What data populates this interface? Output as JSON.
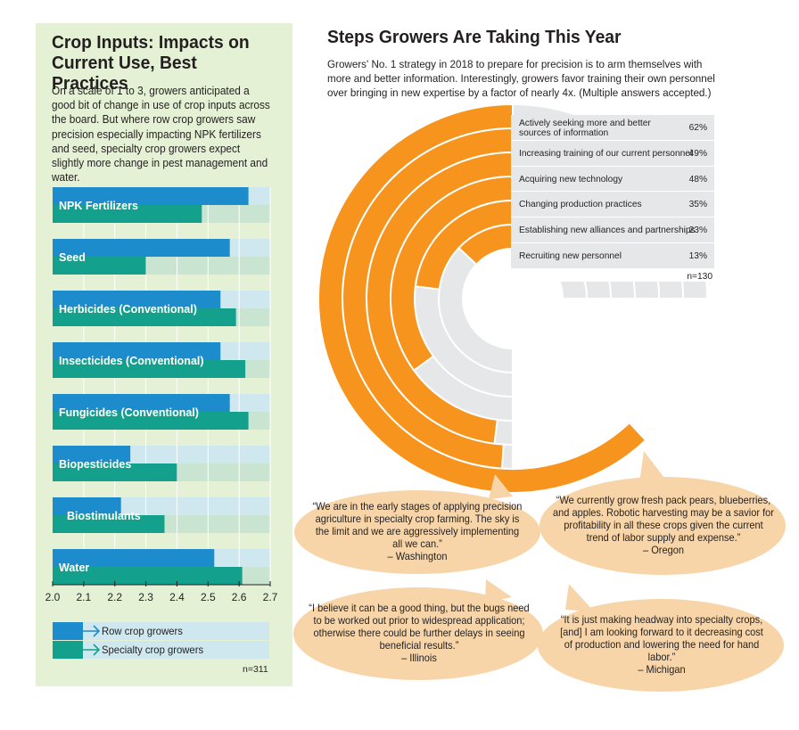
{
  "left": {
    "title": "Crop Inputs: Impacts on Current Use, Best Practices",
    "description": "On a scale of 1 to 3, growers anticipated a good bit of change in use of crop inputs across the board. But where row crop growers saw precision especially impacting NPK fertilizers and seed, specialty crop growers expect slightly more change in pest management and water.",
    "legend": [
      "Row crop growers",
      "Specialty crop growers"
    ],
    "n_label": "n=311"
  },
  "right": {
    "title": "Steps Growers Are Taking This Year",
    "description": "Growers' No. 1 strategy in 2018 to prepare for precision is to arm themselves with more and better information. Interestingly, growers favor training their own personnel over bringing in new expertise by a factor of nearly 4x. (Multiple answers accepted.)",
    "n_label": "n=130"
  },
  "quotes": [
    {
      "text": "“We are in the early stages of applying precision agriculture in specialty crop farming. The sky is the limit and we are aggressively implementing all we can.”",
      "source": "– Washington"
    },
    {
      "text": "“We currently grow fresh pack pears, blueberries, and apples. Robotic harvesting may be a savior for profitability in all these crops given the current trend of labor supply and expense.”",
      "source": "– Oregon"
    },
    {
      "text": "“I believe it can be a good thing, but the bugs need to be worked out prior to widespread application; otherwise there could be further delays in seeing beneficial results.”",
      "source": "– Illinois"
    },
    {
      "text": "“It is just making headway into specialty crops, [and] I am looking forward to it decreasing cost of production and lowering the need for hand labor.”",
      "source": "– Michigan"
    }
  ],
  "colors": {
    "row_crop": "#1c8ccd",
    "specialty": "#13a08d",
    "orange": "#f7941d",
    "gray": "#e6e7e8",
    "panel": "#e4f1d4",
    "bubble": "#f7d5a8"
  },
  "chart_data": [
    {
      "type": "bar",
      "orientation": "horizontal",
      "categories": [
        "NPK Fertilizers",
        "Seed",
        "Herbicides (Conventional)",
        "Insecticides (Conventional)",
        "Fungicides (Conventional)",
        "Biopesticides",
        "Biostimulants",
        "Water"
      ],
      "series": [
        {
          "name": "Row crop growers",
          "values": [
            2.63,
            2.57,
            2.54,
            2.54,
            2.57,
            2.25,
            2.22,
            2.52
          ]
        },
        {
          "name": "Specialty crop growers",
          "values": [
            2.48,
            2.3,
            2.59,
            2.62,
            2.63,
            2.4,
            2.36,
            2.61
          ]
        }
      ],
      "xlim": [
        2.0,
        2.7
      ],
      "xticks": [
        "2.0",
        "2.1",
        "2.2",
        "2.3",
        "2.4",
        "2.5",
        "2.6",
        "2.7"
      ]
    },
    {
      "type": "radial_bar",
      "categories": [
        "Actively seeking more and better sources of information",
        "Increasing training of our current personnel",
        "Acquiring new technology",
        "Changing production practices",
        "Establishing new alliances and partnerships",
        "Recruiting new personnel"
      ],
      "values": [
        62,
        49,
        48,
        35,
        23,
        13
      ],
      "labels": [
        "62%",
        "49%",
        "48%",
        "35%",
        "23%",
        "13%"
      ]
    }
  ]
}
